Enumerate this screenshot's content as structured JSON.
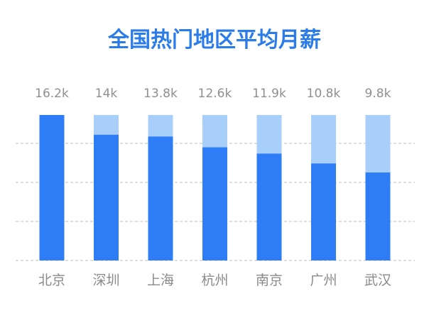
{
  "chart_data": {
    "type": "bar",
    "title": "全国热门地区平均月薪",
    "categories": [
      "北京",
      "深圳",
      "上海",
      "杭州",
      "南京",
      "广州",
      "武汉"
    ],
    "values": [
      16.2,
      14,
      13.8,
      12.6,
      11.9,
      10.8,
      9.8
    ],
    "value_labels": [
      "16.2k",
      "14k",
      "13.8k",
      "12.6k",
      "11.9k",
      "10.8k",
      "9.8k"
    ],
    "unit": "k",
    "ylim": [
      0,
      16.2
    ],
    "grid": true,
    "colors": {
      "title": "#2b7be8",
      "bar": "#2e7cf6",
      "bar_background": "#a8cffa",
      "value_label": "#8f8f8f",
      "category_label": "#8a8a8a",
      "grid": "#bdbdbd"
    }
  }
}
